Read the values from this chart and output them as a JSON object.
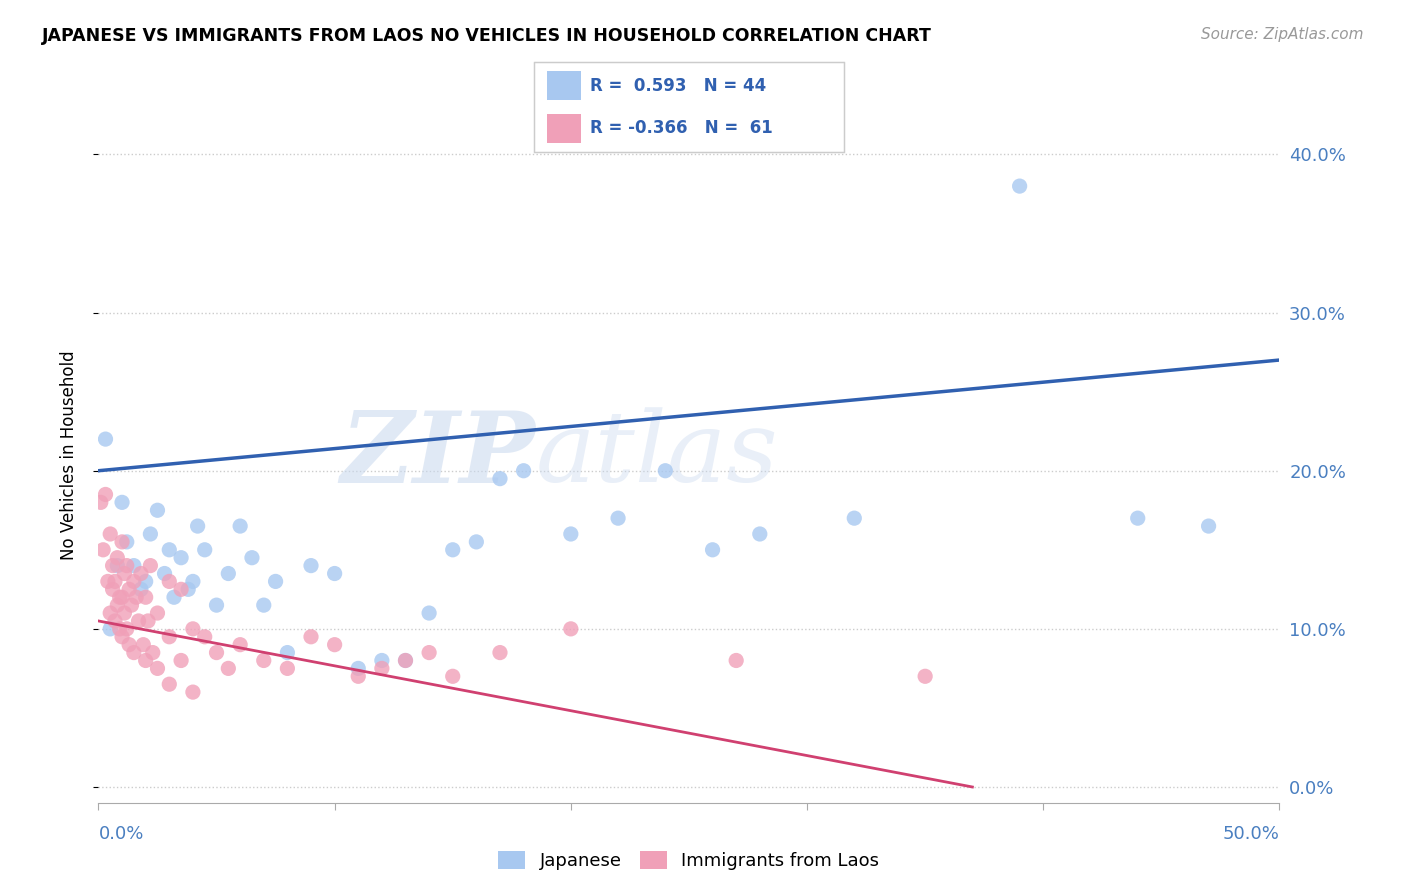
{
  "title": "JAPANESE VS IMMIGRANTS FROM LAOS NO VEHICLES IN HOUSEHOLD CORRELATION CHART",
  "source": "Source: ZipAtlas.com",
  "watermark_zip": "ZIP",
  "watermark_atlas": "atlas",
  "ylabel": "No Vehicles in Household",
  "ytick_values": [
    0.0,
    10.0,
    20.0,
    30.0,
    40.0
  ],
  "xlim": [
    0.0,
    50.0
  ],
  "ylim": [
    -1.0,
    43.0
  ],
  "legend1_label": "Japanese",
  "legend2_label": "Immigrants from Laos",
  "R1": "0.593",
  "N1": "44",
  "R2": "-0.366",
  "N2": "61",
  "blue_color": "#a8c8f0",
  "pink_color": "#f0a0b8",
  "blue_line_color": "#3060b0",
  "pink_line_color": "#d04070",
  "blue_scatter": [
    [
      0.3,
      22.0
    ],
    [
      0.5,
      10.0
    ],
    [
      0.8,
      14.0
    ],
    [
      1.0,
      18.0
    ],
    [
      1.2,
      15.5
    ],
    [
      1.5,
      14.0
    ],
    [
      1.8,
      12.5
    ],
    [
      2.0,
      13.0
    ],
    [
      2.2,
      16.0
    ],
    [
      2.5,
      17.5
    ],
    [
      2.8,
      13.5
    ],
    [
      3.0,
      15.0
    ],
    [
      3.2,
      12.0
    ],
    [
      3.5,
      14.5
    ],
    [
      3.8,
      12.5
    ],
    [
      4.0,
      13.0
    ],
    [
      4.2,
      16.5
    ],
    [
      4.5,
      15.0
    ],
    [
      5.0,
      11.5
    ],
    [
      5.5,
      13.5
    ],
    [
      6.0,
      16.5
    ],
    [
      6.5,
      14.5
    ],
    [
      7.0,
      11.5
    ],
    [
      7.5,
      13.0
    ],
    [
      8.0,
      8.5
    ],
    [
      9.0,
      14.0
    ],
    [
      10.0,
      13.5
    ],
    [
      11.0,
      7.5
    ],
    [
      12.0,
      8.0
    ],
    [
      13.0,
      8.0
    ],
    [
      14.0,
      11.0
    ],
    [
      15.0,
      15.0
    ],
    [
      16.0,
      15.5
    ],
    [
      17.0,
      19.5
    ],
    [
      18.0,
      20.0
    ],
    [
      20.0,
      16.0
    ],
    [
      22.0,
      17.0
    ],
    [
      24.0,
      20.0
    ],
    [
      26.0,
      15.0
    ],
    [
      28.0,
      16.0
    ],
    [
      32.0,
      17.0
    ],
    [
      39.0,
      38.0
    ],
    [
      44.0,
      17.0
    ],
    [
      47.0,
      16.5
    ]
  ],
  "pink_scatter": [
    [
      0.1,
      18.0
    ],
    [
      0.2,
      15.0
    ],
    [
      0.3,
      18.5
    ],
    [
      0.4,
      13.0
    ],
    [
      0.5,
      11.0
    ],
    [
      0.5,
      16.0
    ],
    [
      0.6,
      14.0
    ],
    [
      0.6,
      12.5
    ],
    [
      0.7,
      13.0
    ],
    [
      0.7,
      10.5
    ],
    [
      0.8,
      14.5
    ],
    [
      0.8,
      11.5
    ],
    [
      0.9,
      12.0
    ],
    [
      0.9,
      10.0
    ],
    [
      1.0,
      15.5
    ],
    [
      1.0,
      12.0
    ],
    [
      1.0,
      9.5
    ],
    [
      1.1,
      13.5
    ],
    [
      1.1,
      11.0
    ],
    [
      1.2,
      14.0
    ],
    [
      1.2,
      10.0
    ],
    [
      1.3,
      12.5
    ],
    [
      1.3,
      9.0
    ],
    [
      1.4,
      11.5
    ],
    [
      1.5,
      13.0
    ],
    [
      1.5,
      8.5
    ],
    [
      1.6,
      12.0
    ],
    [
      1.7,
      10.5
    ],
    [
      1.8,
      13.5
    ],
    [
      1.9,
      9.0
    ],
    [
      2.0,
      12.0
    ],
    [
      2.0,
      8.0
    ],
    [
      2.1,
      10.5
    ],
    [
      2.2,
      14.0
    ],
    [
      2.3,
      8.5
    ],
    [
      2.5,
      11.0
    ],
    [
      2.5,
      7.5
    ],
    [
      3.0,
      13.0
    ],
    [
      3.0,
      9.5
    ],
    [
      3.0,
      6.5
    ],
    [
      3.5,
      12.5
    ],
    [
      3.5,
      8.0
    ],
    [
      4.0,
      10.0
    ],
    [
      4.0,
      6.0
    ],
    [
      4.5,
      9.5
    ],
    [
      5.0,
      8.5
    ],
    [
      5.5,
      7.5
    ],
    [
      6.0,
      9.0
    ],
    [
      7.0,
      8.0
    ],
    [
      8.0,
      7.5
    ],
    [
      9.0,
      9.5
    ],
    [
      10.0,
      9.0
    ],
    [
      11.0,
      7.0
    ],
    [
      12.0,
      7.5
    ],
    [
      13.0,
      8.0
    ],
    [
      14.0,
      8.5
    ],
    [
      15.0,
      7.0
    ],
    [
      17.0,
      8.5
    ],
    [
      20.0,
      10.0
    ],
    [
      27.0,
      8.0
    ],
    [
      35.0,
      7.0
    ]
  ],
  "blue_line_x": [
    0.0,
    50.0
  ],
  "blue_line_y": [
    20.0,
    27.0
  ],
  "pink_line_x": [
    0.0,
    37.0
  ],
  "pink_line_y": [
    10.5,
    0.0
  ]
}
